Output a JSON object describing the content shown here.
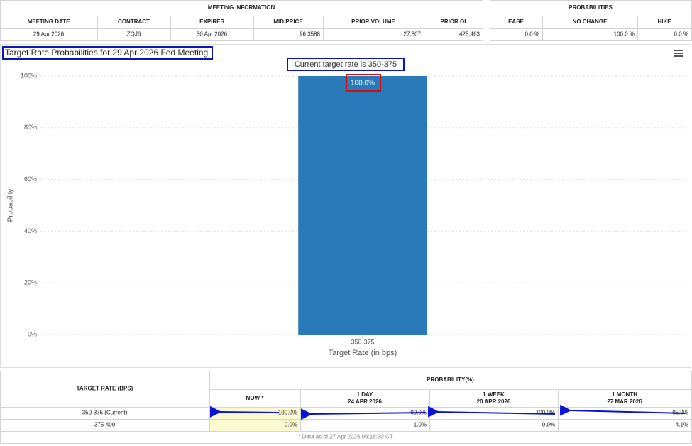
{
  "meeting_information": {
    "title": "MEETING INFORMATION",
    "headers": [
      "MEETING DATE",
      "CONTRACT",
      "EXPIRES",
      "MID PRICE",
      "PRIOR VOLUME",
      "PRIOR OI"
    ],
    "row": [
      "29 Apr 2026",
      "ZQJ6",
      "30 Apr 2026",
      "96.3588",
      "27,807",
      "425,463"
    ]
  },
  "probabilities": {
    "title": "PROBABILITIES",
    "headers": [
      "EASE",
      "NO CHANGE",
      "HIKE"
    ],
    "row": [
      "0.0 %",
      "100.0 %",
      "0.0 %"
    ]
  },
  "chart_data": {
    "type": "bar",
    "title": "Target Rate Probabilities for 29 Apr 2026 Fed Meeting",
    "subtitle": "Current target rate is 350-375",
    "categories": [
      "350-375"
    ],
    "values": [
      100
    ],
    "value_labels": [
      "100.0%"
    ],
    "color": "#2a7ab9",
    "x_label": "Target Rate (in bps)",
    "y_label": "Probability",
    "ylim": [
      0,
      100
    ],
    "yticks": [
      {
        "value": 0,
        "label": "0%"
      },
      {
        "value": 20,
        "label": "20%"
      },
      {
        "value": 40,
        "label": "40%"
      },
      {
        "value": 60,
        "label": "60%"
      },
      {
        "value": 80,
        "label": "80%"
      },
      {
        "value": 100,
        "label": "100%"
      }
    ],
    "grid": true
  },
  "history_table": {
    "row_header": "TARGET RATE (BPS)",
    "group_header": "PROBABILITY(%)",
    "columns": [
      {
        "label": "NOW *"
      },
      {
        "label": "1 DAY",
        "date": "24 APR 2026"
      },
      {
        "label": "1 WEEK",
        "date": "20 APR 2026"
      },
      {
        "label": "1 MONTH",
        "date": "27 MAR 2026"
      }
    ],
    "rows": [
      [
        "350-375 (Current)",
        "100.0%",
        "99.0%",
        "100.0%",
        "95.9%"
      ],
      [
        "375-400",
        "0.0%",
        "1.0%",
        "0.0%",
        "4.1%"
      ]
    ],
    "footnote": "* Data as of 27 Apr 2026 06:16:30 CT"
  }
}
